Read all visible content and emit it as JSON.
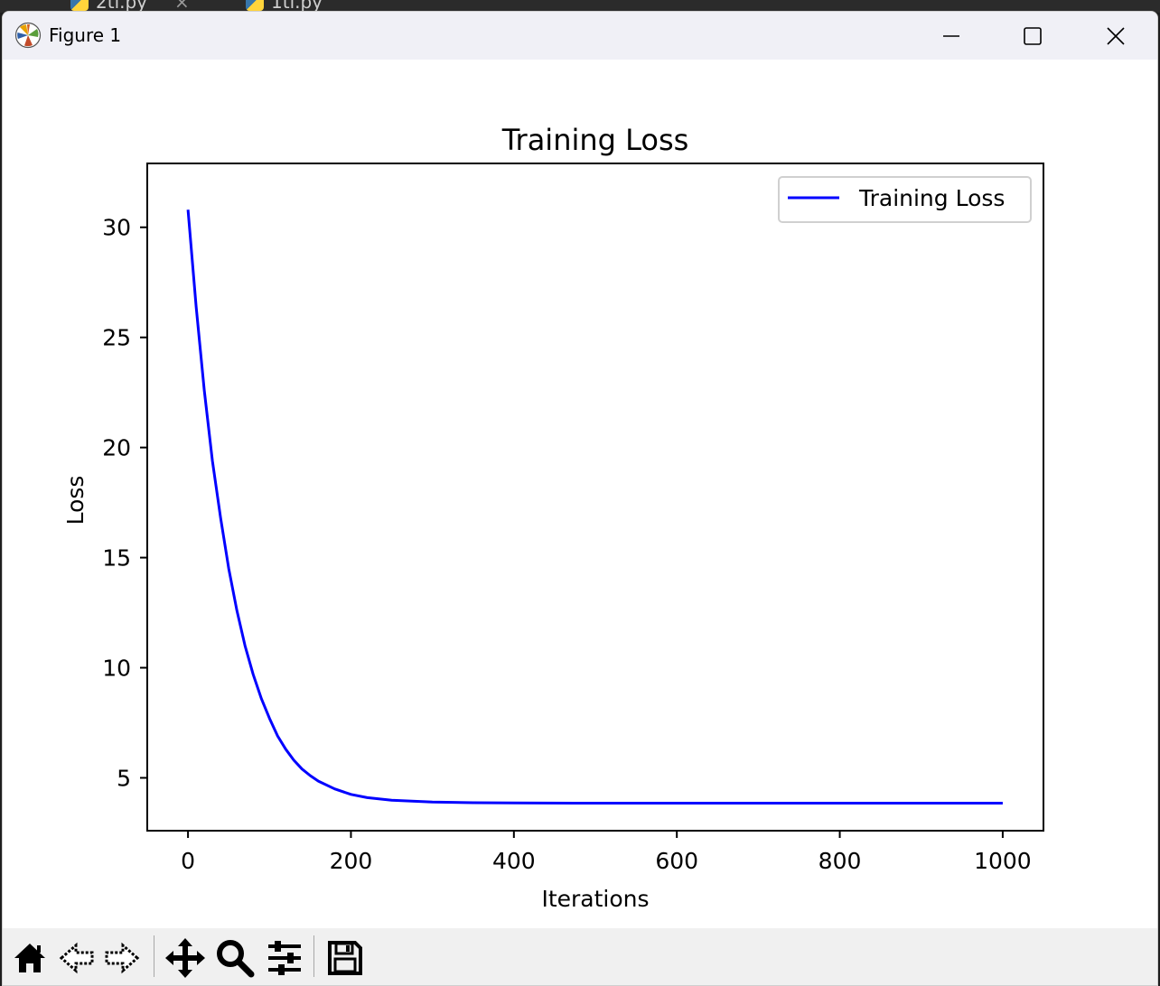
{
  "background_tabs": [
    {
      "label": "2tl.py"
    },
    {
      "label": "1tl.py"
    }
  ],
  "window": {
    "title": "Figure 1"
  },
  "toolbar": {
    "buttons": [
      "home-icon",
      "back-icon",
      "forward-icon",
      "pan-icon",
      "zoom-icon",
      "configure-subplots-icon",
      "save-icon"
    ]
  },
  "chart_data": {
    "type": "line",
    "title": "Training Loss",
    "xlabel": "Iterations",
    "ylabel": "Loss",
    "xlim": [
      -50,
      1050
    ],
    "ylim": [
      2.6,
      32.9
    ],
    "xticks": [
      0,
      200,
      400,
      600,
      800,
      1000
    ],
    "yticks": [
      5,
      10,
      15,
      20,
      25,
      30
    ],
    "grid": false,
    "legend": {
      "position": "top-right"
    },
    "series": [
      {
        "name": "Training Loss",
        "color": "#0000ff",
        "x": [
          0,
          10,
          20,
          30,
          40,
          50,
          60,
          70,
          80,
          90,
          100,
          110,
          120,
          130,
          140,
          150,
          160,
          180,
          200,
          220,
          250,
          300,
          350,
          400,
          500,
          600,
          700,
          800,
          900,
          1000
        ],
        "y": [
          30.8,
          26.4,
          22.6,
          19.4,
          16.8,
          14.5,
          12.6,
          11.0,
          9.7,
          8.6,
          7.7,
          6.9,
          6.3,
          5.8,
          5.4,
          5.1,
          4.85,
          4.5,
          4.25,
          4.1,
          3.98,
          3.9,
          3.87,
          3.86,
          3.85,
          3.85,
          3.85,
          3.85,
          3.85,
          3.85
        ]
      }
    ]
  }
}
